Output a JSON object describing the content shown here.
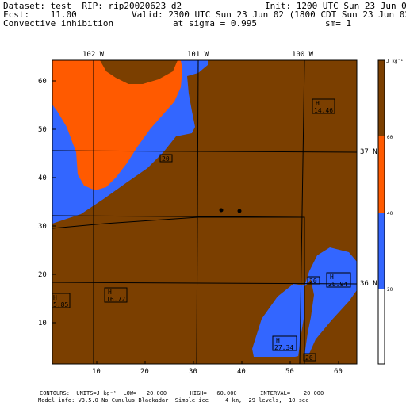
{
  "header": {
    "dataset": "Dataset: test  RIP: rip20020623 d2",
    "init": "Init: 1200 UTC Sun 23 Jun 02",
    "fcst": "Fcst:    11.00",
    "valid": "Valid: 2300 UTC Sun 23 Jun 02 (1800 CDT Sun 23 Jun 02)",
    "field": "Convective inhibition",
    "sigma": "at sigma = 0.995",
    "sm": "sm= 1"
  },
  "map": {
    "lon_labels": [
      "102 W",
      "101 W",
      "100 W"
    ],
    "lat_labels": [
      "37 N",
      "36 N"
    ],
    "y_ticks": [
      "60",
      "50",
      "40",
      "30",
      "20",
      "10"
    ],
    "x_ticks": [
      "10",
      "20",
      "30",
      "40",
      "50",
      "60"
    ],
    "contour_labels": [
      "20",
      "20",
      "20"
    ],
    "highs": [
      {
        "label": "H",
        "value": "14.46"
      },
      {
        "label": "H",
        "value": "28.94"
      },
      {
        "label": "H",
        "value": "16.72"
      },
      {
        "label": "H",
        "value": "27.34"
      },
      {
        "label": "H",
        "value": "5.85"
      }
    ],
    "colors": {
      "brown": "#7b3f00",
      "orange": "#ff5a00",
      "blue": "#3366ff"
    }
  },
  "colorbar": {
    "unit": "J kg⁻¹",
    "labels": [
      "60",
      "40",
      "20"
    ],
    "fills": [
      "#7b3f00",
      "#ff5a00",
      "#3366ff",
      "#ffffff"
    ]
  },
  "footer": {
    "contours": "CONTOURS:  UNITS=J kg⁻¹  LOW=   20.000       HIGH=   60.000       INTERVAL=    20.000",
    "model_info": "Model info: V3.5.0 No Cumulus Blackadar  Simple ice     4 km,  29 levels,  10 sec"
  }
}
